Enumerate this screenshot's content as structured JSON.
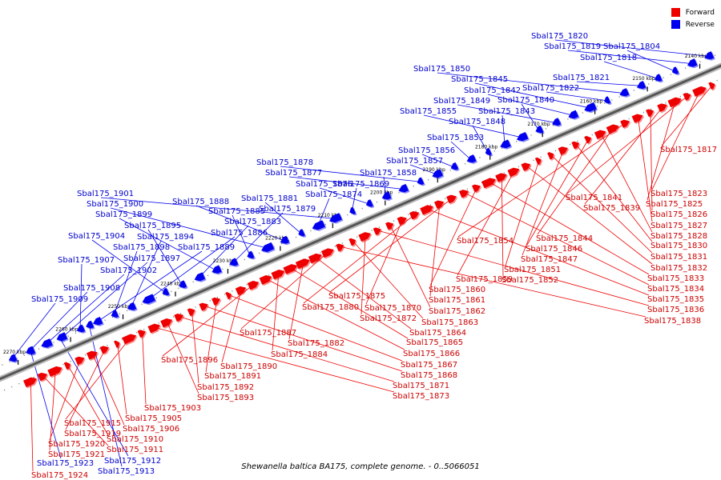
{
  "title": "Shewanella baltica BA175, complete genome. - 0..5066051",
  "colors": {
    "forward": "#ee0000",
    "reverse": "#0000ee",
    "track": "#999999",
    "label_forward": "#cc0000",
    "label_reverse": "#0000cc"
  },
  "legend": [
    {
      "name": "Forward",
      "color": "#ee0000"
    },
    {
      "name": "Reverse",
      "color": "#0000ee"
    }
  ],
  "ticks": [
    "2140 kbp",
    "2150 kbp",
    "2160 kbp",
    "2170 kbp",
    "2180 kbp",
    "2190 kbp",
    "2200 kbp",
    "2210 kbp",
    "2220 kbp",
    "2230 kbp",
    "2240 kbp",
    "2250 kbp",
    "2260 kbp",
    "2270 kbp"
  ],
  "reverse_genes": [
    "Sbal175_1820",
    "Sbal175_1819",
    "Sbal175_1804",
    "Sbal175_1818",
    "Sbal175_1821",
    "Sbal175_1850",
    "Sbal175_1822",
    "Sbal175_1845",
    "Sbal175_1842",
    "Sbal175_1849",
    "Sbal175_1840",
    "Sbal175_1855",
    "Sbal175_1843",
    "Sbal175_1848",
    "Sbal175_1853",
    "Sbal175_1856",
    "Sbal175_1857",
    "Sbal175_1878",
    "Sbal175_1877",
    "Sbal175_1858",
    "Sbal175_1876",
    "Sbal175_1869",
    "Sbal175_1901",
    "Sbal175_1874",
    "Sbal175_1881",
    "Sbal175_1888",
    "Sbal175_1900",
    "Sbal175_1885",
    "Sbal175_1879",
    "Sbal175_1899",
    "Sbal175_1883",
    "Sbal175_1895",
    "Sbal175_1904",
    "Sbal175_1886",
    "Sbal175_1894",
    "Sbal175_1898",
    "Sbal175_1889",
    "Sbal175_1907",
    "Sbal175_1897",
    "Sbal175_1902",
    "Sbal175_1908",
    "Sbal175_1909"
  ],
  "forward_genes": [
    "Sbal175_1817",
    "Sbal175_1823",
    "Sbal175_1841",
    "Sbal175_1825",
    "Sbal175_1839",
    "Sbal175_1826",
    "Sbal175_1827",
    "Sbal175_1854",
    "Sbal175_1844",
    "Sbal175_1828",
    "Sbal175_1846",
    "Sbal175_1830",
    "Sbal175_1847",
    "Sbal175_1831",
    "Sbal175_1851",
    "Sbal175_1832",
    "Sbal175_1859",
    "Sbal175_1852",
    "Sbal175_1833",
    "Sbal175_1860",
    "Sbal175_1834",
    "Sbal175_1875",
    "Sbal175_1861",
    "Sbal175_1835",
    "Sbal175_1880",
    "Sbal175_1870",
    "Sbal175_1862",
    "Sbal175_1836",
    "Sbal175_1872",
    "Sbal175_1863",
    "Sbal175_1838",
    "Sbal175_1887",
    "Sbal175_1864",
    "Sbal175_1882",
    "Sbal175_1865",
    "Sbal175_1884",
    "Sbal175_1866",
    "Sbal175_1896",
    "Sbal175_1890",
    "Sbal175_1867",
    "Sbal175_1891",
    "Sbal175_1868",
    "Sbal175_1892",
    "Sbal175_1871",
    "Sbal175_1893",
    "Sbal175_1873",
    "Sbal175_1903",
    "Sbal175_1915",
    "Sbal175_1905",
    "Sbal175_1919",
    "Sbal175_1906",
    "Sbal175_1920",
    "Sbal175_1910",
    "Sbal175_1921",
    "Sbal175_1911",
    "Sbal175_1924"
  ],
  "reverse_genes_bottom": [
    "Sbal175_1923",
    "Sbal175_1912",
    "Sbal175_1913"
  ]
}
